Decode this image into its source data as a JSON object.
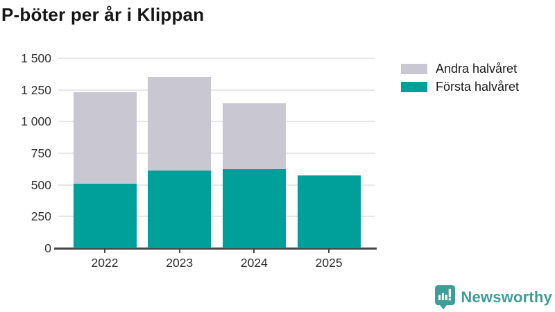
{
  "title": "P-böter per år i Klippan",
  "chart_data": {
    "type": "bar",
    "stacked": true,
    "title": "P-böter per år i Klippan",
    "xlabel": "",
    "ylabel": "",
    "categories": [
      "2022",
      "2023",
      "2024",
      "2025"
    ],
    "series": [
      {
        "name": "Första halvåret",
        "color": "#00a09a",
        "values": [
          510,
          615,
          625,
          575
        ]
      },
      {
        "name": "Andra halvåret",
        "color": "#c9c7d2",
        "values": [
          720,
          740,
          520,
          0
        ]
      }
    ],
    "totals": [
      1230,
      1355,
      1145,
      575
    ],
    "ylim": [
      0,
      1500
    ],
    "yticks": [
      {
        "v": 0,
        "label": "0"
      },
      {
        "v": 250,
        "label": "250"
      },
      {
        "v": 500,
        "label": "500"
      },
      {
        "v": 750,
        "label": "750"
      },
      {
        "v": 1000,
        "label": "1 000"
      },
      {
        "v": 1250,
        "label": "1 250"
      },
      {
        "v": 1500,
        "label": "1 500"
      }
    ],
    "grid": true,
    "legend_position": "right"
  },
  "legend": {
    "items": [
      {
        "label": "Andra halvåret",
        "color": "#c9c7d2"
      },
      {
        "label": "Första halvåret",
        "color": "#00a09a"
      }
    ]
  },
  "colors": {
    "first_half": "#00a09a",
    "second_half": "#c9c7d2",
    "gridline": "#e7e7e7",
    "axis": "#454545",
    "brand": "#3e9d96"
  },
  "footer": {
    "brand": "Newsworthy"
  }
}
